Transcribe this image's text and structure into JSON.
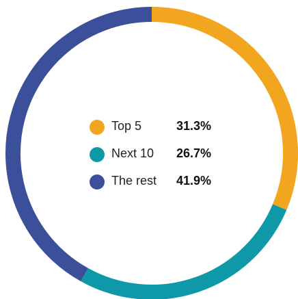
{
  "chart_data": {
    "type": "pie",
    "style": "donut",
    "categories": [
      "Top 5",
      "Next 10",
      "The rest"
    ],
    "values": [
      31.3,
      26.7,
      41.9
    ],
    "value_labels": [
      "31.3%",
      "26.7%",
      "41.9%"
    ],
    "colors": [
      "#F2A51E",
      "#0E98A8",
      "#3B4F9A"
    ],
    "start": "top, clockwise",
    "legend_placement": "center"
  }
}
